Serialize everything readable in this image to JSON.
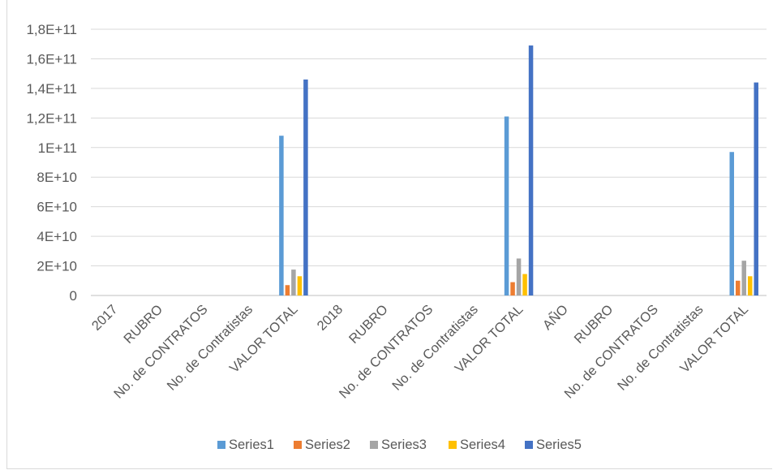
{
  "chart_data": {
    "type": "bar",
    "categories": [
      "2017",
      "RUBRO",
      "No. de CONTRATOS",
      "No. de Contratistas",
      "VALOR TOTAL",
      "2018",
      "RUBRO",
      "No. de CONTRATOS",
      "No. de Contratistas",
      "VALOR TOTAL",
      "AÑO",
      "RUBRO",
      "No. de CONTRATOS",
      "No. de Contratistas",
      "VALOR TOTAL"
    ],
    "series": [
      {
        "name": "Series1",
        "color": "#5b9bd5",
        "values": [
          0,
          0,
          0,
          0,
          108000000000,
          0,
          0,
          0,
          0,
          121000000000,
          0,
          0,
          0,
          0,
          97000000000
        ]
      },
      {
        "name": "Series2",
        "color": "#ed7d31",
        "values": [
          0,
          0,
          0,
          0,
          7000000000,
          0,
          0,
          0,
          0,
          9000000000,
          0,
          0,
          0,
          0,
          10000000000
        ]
      },
      {
        "name": "Series3",
        "color": "#a5a5a5",
        "values": [
          0,
          0,
          0,
          0,
          17500000000,
          0,
          0,
          0,
          0,
          25000000000,
          0,
          0,
          0,
          0,
          23500000000
        ]
      },
      {
        "name": "Series4",
        "color": "#ffc000",
        "values": [
          0,
          0,
          0,
          0,
          13000000000,
          0,
          0,
          0,
          0,
          14500000000,
          0,
          0,
          0,
          0,
          13000000000
        ]
      },
      {
        "name": "Series5",
        "color": "#4472c4",
        "values": [
          0,
          0,
          0,
          0,
          146000000000,
          0,
          0,
          0,
          0,
          169000000000,
          0,
          0,
          0,
          0,
          144000000000
        ]
      }
    ],
    "yticks": [
      "0",
      "2E+10",
      "4E+10",
      "6E+10",
      "8E+10",
      "1E+11",
      "1,2E+11",
      "1,4E+11",
      "1,6E+11",
      "1,8E+11"
    ],
    "ylim": [
      0,
      180000000000
    ],
    "grid": true,
    "legend_position": "bottom"
  }
}
